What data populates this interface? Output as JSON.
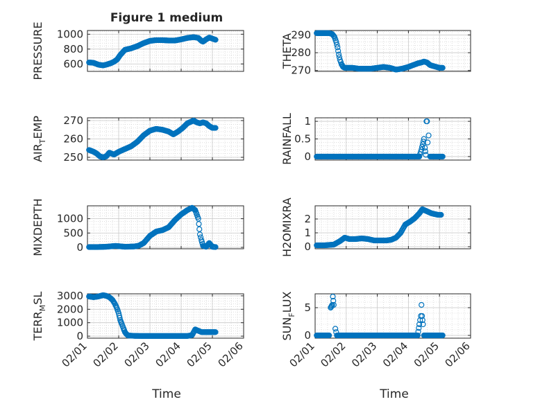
{
  "title": "Figure 1 medium",
  "xlabel": "Time",
  "x_ticks": [
    "02/01",
    "02/02",
    "02/03",
    "02/04",
    "02/05",
    "02/06"
  ],
  "x_domain": [
    0,
    5
  ],
  "colors": {
    "marker": "#0072BD",
    "axis": "#262626",
    "grid": "#c8c8c8",
    "background": "#ffffff"
  },
  "chart_data": [
    {
      "type": "scatter",
      "ylabel": "PRESSURE",
      "ylim": [
        500,
        1050
      ],
      "yticks": [
        600,
        800,
        1000
      ],
      "ytick_labels": [
        "600",
        "800",
        "1000"
      ],
      "x": [
        0.05,
        0.2,
        0.35,
        0.5,
        0.6,
        0.75,
        0.85,
        0.95,
        1.05,
        1.2,
        1.4,
        1.6,
        1.8,
        2.0,
        2.2,
        2.4,
        2.6,
        2.8,
        3.0,
        3.2,
        3.4,
        3.55,
        3.65,
        3.7,
        3.8,
        3.9,
        4.0,
        4.1
      ],
      "values": [
        620,
        615,
        590,
        580,
        590,
        610,
        630,
        660,
        720,
        790,
        810,
        840,
        880,
        910,
        920,
        920,
        915,
        915,
        930,
        950,
        960,
        950,
        910,
        900,
        930,
        955,
        940,
        925
      ]
    },
    {
      "type": "scatter",
      "ylabel": "THETA",
      "ylim": [
        269.5,
        292.5
      ],
      "yticks": [
        270,
        280,
        290
      ],
      "ytick_labels": [
        "270",
        "280",
        "290"
      ],
      "x": [
        0.05,
        0.15,
        0.3,
        0.45,
        0.55,
        0.62,
        0.68,
        0.72,
        0.76,
        0.8,
        0.85,
        0.9,
        0.95,
        1.05,
        1.2,
        1.4,
        1.6,
        1.8,
        2.0,
        2.2,
        2.4,
        2.6,
        2.8,
        3.0,
        3.15,
        3.3,
        3.42,
        3.5,
        3.6,
        3.7,
        3.8,
        3.9,
        4.0,
        4.1
      ],
      "values": [
        291,
        291,
        291,
        291,
        290.5,
        289,
        286,
        283,
        279,
        276,
        273.5,
        272,
        271.5,
        271.5,
        271.5,
        271,
        271,
        271,
        271.5,
        272,
        271.5,
        270.5,
        271,
        272,
        273,
        274,
        274.5,
        275,
        274.5,
        273,
        272.5,
        272,
        271.5,
        271.5
      ]
    },
    {
      "type": "scatter",
      "ylabel": "AIR_TEMP",
      "ylim": [
        248.5,
        271.5
      ],
      "yticks": [
        250,
        260,
        270
      ],
      "ytick_labels": [
        "250",
        "260",
        "270"
      ],
      "x": [
        0.05,
        0.2,
        0.3,
        0.4,
        0.5,
        0.6,
        0.7,
        0.85,
        1.0,
        1.2,
        1.4,
        1.6,
        1.8,
        2.0,
        2.2,
        2.4,
        2.6,
        2.75,
        2.9,
        3.05,
        3.2,
        3.4,
        3.5,
        3.6,
        3.7,
        3.8,
        3.9,
        4.0,
        4.1
      ],
      "values": [
        254,
        253,
        252,
        250.5,
        250,
        250.5,
        252.5,
        251.5,
        253,
        254.5,
        256,
        258.5,
        262,
        264.5,
        265.5,
        265,
        264,
        262.5,
        264,
        266,
        268.5,
        270,
        269,
        268.5,
        269,
        268.5,
        267,
        266,
        266
      ]
    },
    {
      "type": "scatter",
      "ylabel": "RAINFALL",
      "ylim": [
        -0.1,
        1.1
      ],
      "yticks": [
        0,
        0.5,
        1
      ],
      "ytick_labels": [
        "0",
        "0.5",
        "1"
      ],
      "x": [
        0.05,
        0.3,
        0.6,
        0.9,
        1.2,
        1.5,
        1.8,
        2.1,
        2.4,
        2.7,
        3.0,
        3.2,
        3.35,
        3.42,
        3.46,
        3.5,
        3.53,
        3.56,
        3.58,
        3.6,
        3.62,
        3.65,
        3.7,
        3.8,
        3.9,
        4.0,
        4.1
      ],
      "values": [
        0,
        0,
        0,
        0,
        0,
        0,
        0,
        0,
        0,
        0,
        0,
        0,
        0,
        0.2,
        0.35,
        0.5,
        0.25,
        0.05,
        1.0,
        1.0,
        0.4,
        0.6,
        0,
        0,
        0,
        0,
        0
      ]
    },
    {
      "type": "scatter",
      "ylabel": "MIXDEPTH",
      "ylim": [
        -50,
        1450
      ],
      "yticks": [
        0,
        500,
        1000
      ],
      "ytick_labels": [
        "0",
        "500",
        "1000"
      ],
      "x": [
        0.05,
        0.3,
        0.6,
        0.9,
        1.2,
        1.5,
        1.65,
        1.8,
        2.0,
        2.2,
        2.4,
        2.6,
        2.8,
        3.0,
        3.2,
        3.35,
        3.45,
        3.55,
        3.6,
        3.65,
        3.7,
        3.8,
        3.9,
        4.0,
        4.1
      ],
      "values": [
        10,
        10,
        20,
        50,
        20,
        30,
        60,
        150,
        400,
        550,
        600,
        700,
        950,
        1150,
        1300,
        1380,
        1300,
        1000,
        450,
        250,
        50,
        20,
        150,
        20,
        10
      ]
    },
    {
      "type": "scatter",
      "ylabel": "H2OMIXRA",
      "ylim": [
        -0.15,
        2.95
      ],
      "yticks": [
        0,
        1,
        2
      ],
      "ytick_labels": [
        "0",
        "1",
        "2"
      ],
      "x": [
        0.05,
        0.3,
        0.6,
        0.8,
        0.95,
        1.1,
        1.3,
        1.5,
        1.7,
        1.9,
        2.1,
        2.3,
        2.45,
        2.6,
        2.75,
        2.9,
        3.05,
        3.2,
        3.35,
        3.45,
        3.55,
        3.65,
        3.75,
        3.85,
        3.95,
        4.05
      ],
      "values": [
        0.1,
        0.1,
        0.15,
        0.4,
        0.65,
        0.55,
        0.55,
        0.6,
        0.55,
        0.45,
        0.45,
        0.45,
        0.5,
        0.65,
        1.0,
        1.6,
        1.8,
        2.05,
        2.4,
        2.7,
        2.6,
        2.5,
        2.4,
        2.35,
        2.3,
        2.3
      ]
    },
    {
      "type": "scatter",
      "ylabel": "TERR_MSL",
      "ylim": [
        -150,
        3150
      ],
      "yticks": [
        0,
        1000,
        2000,
        3000
      ],
      "ytick_labels": [
        "0",
        "1000",
        "2000",
        "3000"
      ],
      "x": [
        0.05,
        0.2,
        0.35,
        0.5,
        0.6,
        0.7,
        0.8,
        0.88,
        0.94,
        1.0,
        1.05,
        1.1,
        1.15,
        1.2,
        1.25,
        1.3,
        1.5,
        1.8,
        2.1,
        2.4,
        2.7,
        3.0,
        3.2,
        3.35,
        3.45,
        3.55,
        3.65,
        3.8,
        3.95,
        4.1
      ],
      "values": [
        2950,
        2900,
        2950,
        3050,
        3000,
        2900,
        2700,
        2400,
        2100,
        1700,
        1200,
        900,
        600,
        300,
        150,
        50,
        20,
        10,
        10,
        10,
        10,
        10,
        10,
        80,
        500,
        400,
        300,
        300,
        300,
        300
      ]
    },
    {
      "type": "scatter",
      "ylabel": "SUN_FLUX",
      "ylim": [
        -0.5,
        7.5
      ],
      "yticks": [
        0,
        5
      ],
      "ytick_labels": [
        "0",
        "5"
      ],
      "x": [
        0.05,
        0.3,
        0.45,
        0.5,
        0.55,
        0.57,
        0.6,
        0.65,
        0.7,
        0.8,
        1.0,
        1.3,
        1.6,
        1.9,
        2.2,
        2.5,
        2.8,
        3.1,
        3.3,
        3.35,
        3.4,
        3.42,
        3.44,
        3.47,
        3.5,
        3.7,
        3.9,
        4.1
      ],
      "values": [
        0,
        0,
        0,
        5.0,
        5.5,
        7.0,
        5.5,
        1.2,
        0,
        0,
        0,
        0,
        0,
        0,
        0,
        0,
        0,
        0,
        0,
        2.0,
        3.5,
        5.5,
        3.5,
        2.0,
        0,
        0,
        0,
        0
      ]
    }
  ]
}
